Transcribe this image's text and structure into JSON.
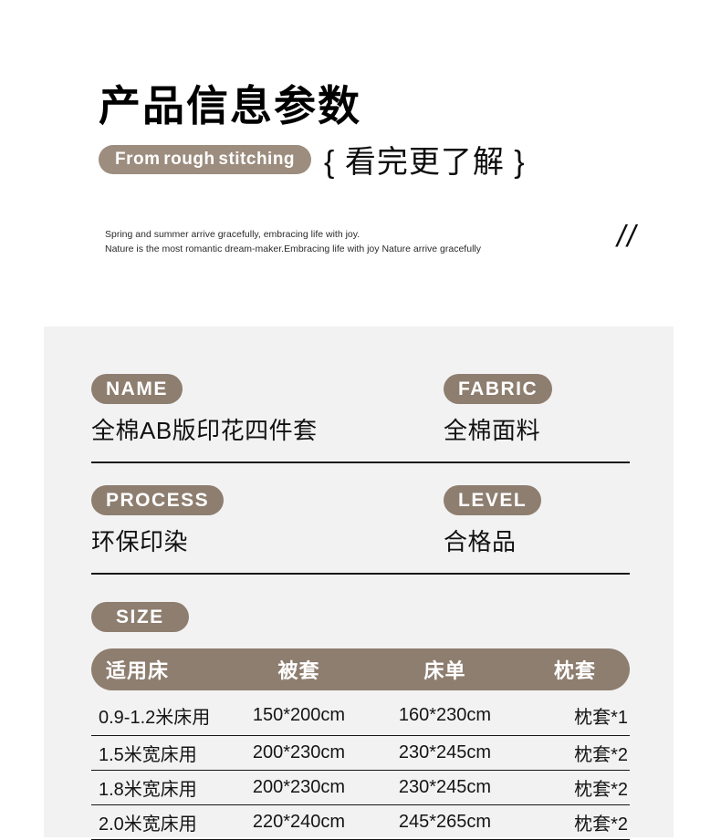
{
  "header": {
    "title": "产品信息参数",
    "subtitle_pill": "From rough stitching",
    "subtitle_cn": "{ 看完更了解 }",
    "tagline_line1": "Spring and summer arrive gracefully, embracing life with joy.",
    "tagline_line2": "Nature is the most romantic dream-maker.Embracing life with joy Nature arrive gracefully",
    "slashes": "//"
  },
  "specs": [
    {
      "label": "NAME",
      "value": "全棉AB版印花四件套"
    },
    {
      "label": "FABRIC",
      "value": "全棉面料"
    },
    {
      "label": "PROCESS",
      "value": "环保印染"
    },
    {
      "label": "LEVEL",
      "value": "合格品"
    }
  ],
  "size_label": "SIZE",
  "size_table": {
    "headers": [
      "适用床",
      "被套",
      "床单",
      "枕套"
    ],
    "rows": [
      [
        "0.9-1.2米床用",
        "150*200cm",
        "160*230cm",
        "枕套*1"
      ],
      [
        "1.5米宽床用",
        "200*230cm",
        "230*245cm",
        "枕套*2"
      ],
      [
        "1.8米宽床用",
        "200*230cm",
        "230*245cm",
        "枕套*2"
      ],
      [
        "2.0米宽床用",
        "220*240cm",
        "245*265cm",
        "枕套*2"
      ]
    ]
  },
  "colors": {
    "accent": "#8e7e70",
    "accent_light": "#9c8d7f",
    "panel_bg": "#f2f2f2",
    "line": "#161616",
    "text": "#141414"
  }
}
